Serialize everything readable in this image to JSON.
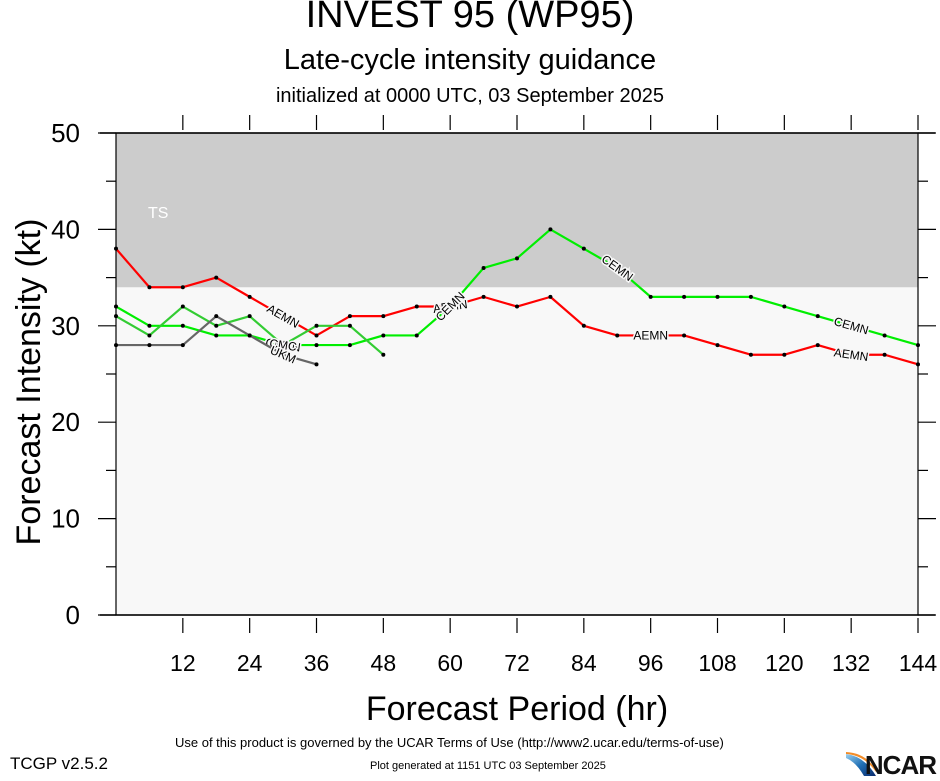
{
  "header": {
    "title": "INVEST 95 (WP95)",
    "subtitle": "Late-cycle intensity guidance",
    "initialized": "initialized at 0000 UTC, 03 September 2025"
  },
  "footer": {
    "terms": "Use of this product is governed by the UCAR Terms of Use (http://www2.ucar.edu/terms-of-use)",
    "version": "TCGP v2.5.2",
    "generated": "Plot generated at 1151 UTC   03 September 2025",
    "logo": "NCAR"
  },
  "colors": {
    "ts_band": "#cccccc",
    "plot_bg": "#f8f8f8",
    "AEMN": "#ff0000",
    "CEMN": "#00ee00",
    "CMC": "#33cc33",
    "UKM": "#666666"
  },
  "chart_data": {
    "type": "line",
    "title": "INVEST 95 (WP95)",
    "subtitle": "Late-cycle intensity guidance",
    "xlabel": "Forecast Period (hr)",
    "ylabel": "Forecast Intensity (kt)",
    "xlim": [
      0,
      144
    ],
    "ylim": [
      0,
      50
    ],
    "xticks": [
      12,
      24,
      36,
      48,
      60,
      72,
      84,
      96,
      108,
      120,
      132,
      144
    ],
    "yticks": [
      0,
      10,
      20,
      30,
      40,
      50
    ],
    "bands": [
      {
        "label": "TS",
        "from": 34,
        "to": 50
      }
    ],
    "grid": false,
    "series": [
      {
        "name": "AEMN",
        "x": [
          0,
          6,
          12,
          18,
          24,
          30,
          36,
          42,
          48,
          54,
          60,
          66,
          72,
          78,
          84,
          90,
          96,
          102,
          108,
          114,
          120,
          126,
          132,
          138,
          144
        ],
        "values": [
          38,
          34,
          34,
          35,
          33,
          31,
          29,
          31,
          31,
          32,
          32,
          33,
          32,
          33,
          30,
          29,
          29,
          29,
          28,
          27,
          27,
          28,
          27,
          27,
          26
        ],
        "label_at": [
          30,
          60,
          96,
          132
        ]
      },
      {
        "name": "CEMN",
        "x": [
          0,
          6,
          12,
          18,
          24,
          30,
          36,
          42,
          48,
          54,
          60,
          66,
          72,
          78,
          84,
          90,
          96,
          102,
          108,
          114,
          120,
          126,
          132,
          138,
          144
        ],
        "values": [
          32,
          30,
          30,
          29,
          29,
          28,
          28,
          28,
          29,
          29,
          32,
          36,
          37,
          40,
          38,
          36,
          33,
          33,
          33,
          33,
          32,
          31,
          30,
          29,
          28
        ],
        "label_at": [
          30,
          60,
          90,
          132
        ]
      },
      {
        "name": "CMC",
        "x": [
          0,
          6,
          12,
          18,
          24,
          30,
          36,
          42,
          48
        ],
        "values": [
          31,
          29,
          32,
          30,
          31,
          28,
          30,
          30,
          27
        ],
        "label_at": [
          30
        ]
      },
      {
        "name": "UKM",
        "x": [
          0,
          6,
          12,
          18,
          24,
          30,
          36
        ],
        "values": [
          28,
          28,
          28,
          31,
          29,
          27,
          26
        ],
        "label_at": [
          30
        ]
      }
    ]
  }
}
